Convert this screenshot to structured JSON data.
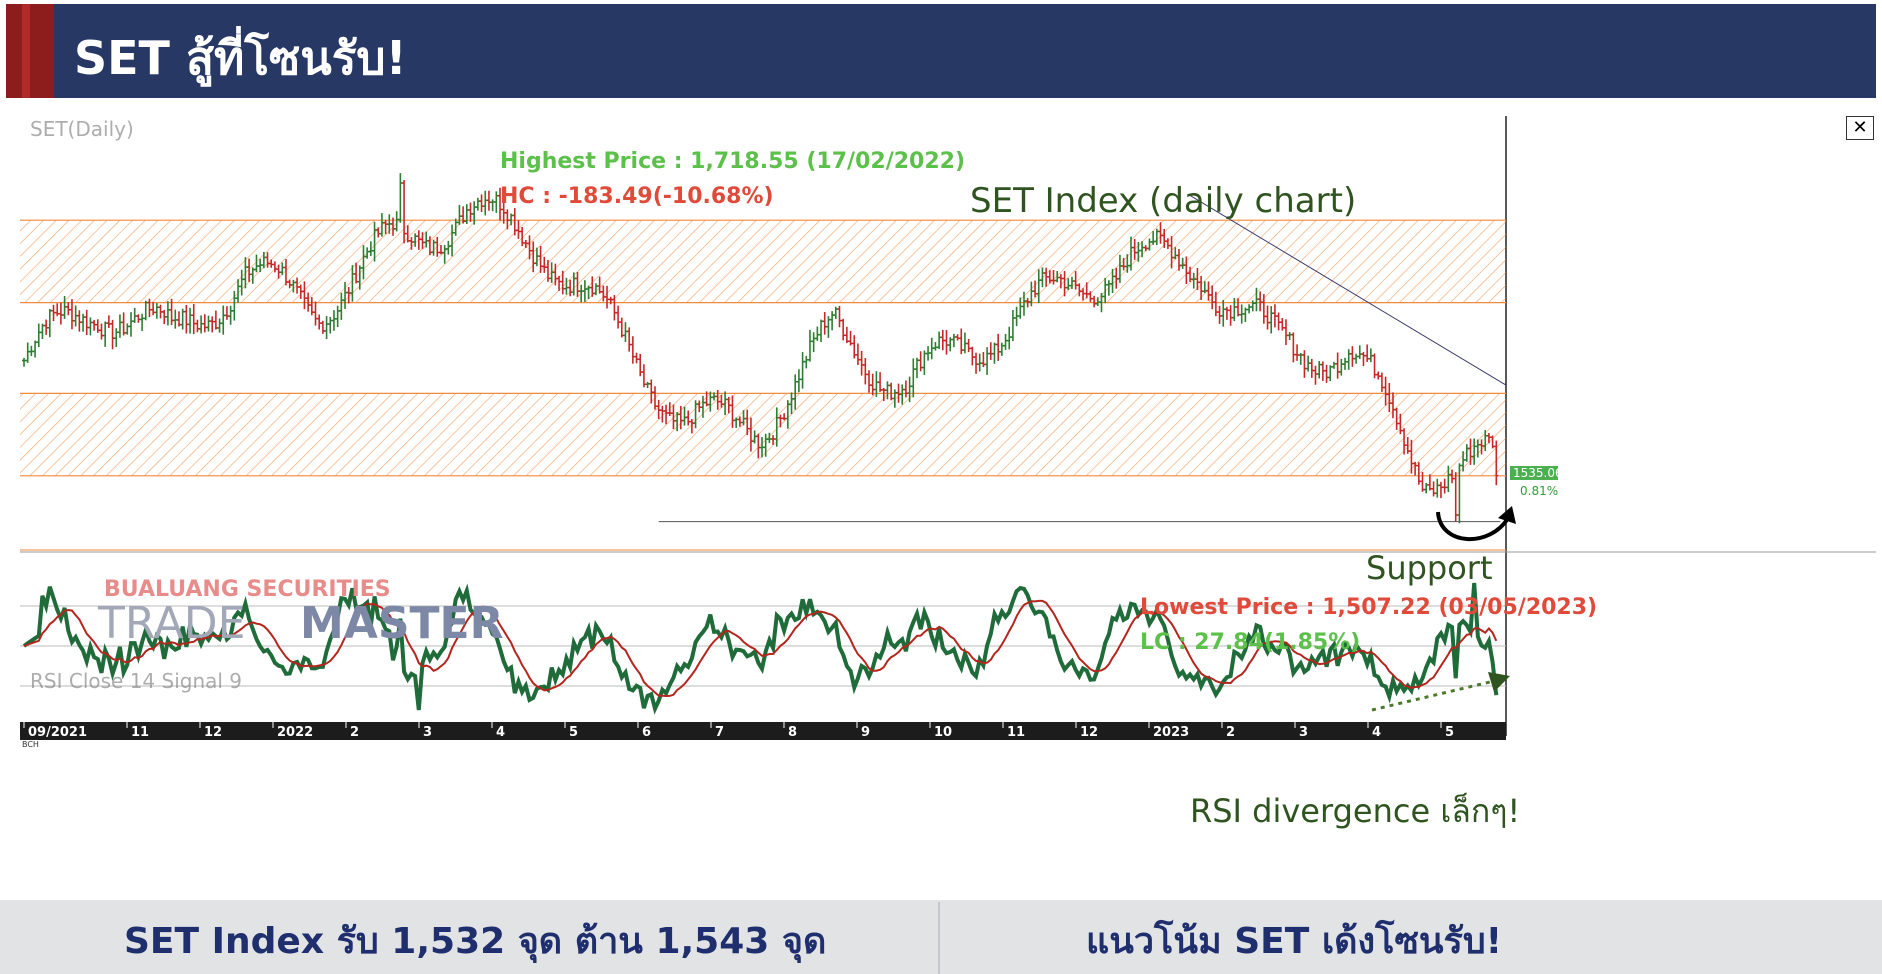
{
  "header": {
    "title": "SET สู้ที่โซนรับ!"
  },
  "chart": {
    "panel_label": "SET(Daily)",
    "rsi_label": "RSI Close 14 Signal 9",
    "main_title": "SET Index (daily chart)",
    "annotations": {
      "highest": "Highest Price : 1,718.55 (17/02/2022)",
      "hc": "HC : -183.49(-10.68%)",
      "support": "Support",
      "lowest": "Lowest Price : 1,507.22 (03/05/2023)",
      "lc": "LC : 27.84(1.85%)",
      "rsi_div": "RSI divergence เล็กๆ!"
    },
    "last_price": "1535.06",
    "last_change": "0.81%",
    "watermark": {
      "line1": "BUALUANG SECURITIES",
      "line2a": "TRADE",
      "line2b": "MASTER"
    },
    "x_ticks": [
      "09/2021",
      "11",
      "12",
      "2022",
      "2",
      "3",
      "4",
      "5",
      "6",
      "7",
      "8",
      "9",
      "10",
      "11",
      "12",
      "2023",
      "2",
      "3",
      "4",
      "5"
    ],
    "corner_label": "BCH",
    "colors": {
      "up": "#2e7d32",
      "down": "#c62828",
      "zone": "#f08a3c",
      "rsi": "#1f6b3a",
      "signal": "#b3261e",
      "header": "#273864"
    }
  },
  "chart_data": {
    "type": "candlestick",
    "title": "SET Index (daily chart)",
    "x_range": [
      "09/2021",
      "05/2023"
    ],
    "resistance_zone": [
      1640,
      1690
    ],
    "support_zone": [
      1535,
      1585
    ],
    "support_line": 1507.22,
    "highest": {
      "value": 1718.55,
      "date": "17/02/2022"
    },
    "lowest": {
      "value": 1507.22,
      "date": "03/05/2023"
    },
    "last": 1535.06,
    "approx_monthly_close": [
      {
        "month": "2021-09",
        "close": 1605
      },
      {
        "month": "2021-10",
        "close": 1630
      },
      {
        "month": "2021-11",
        "close": 1610
      },
      {
        "month": "2021-12",
        "close": 1657
      },
      {
        "month": "2022-01",
        "close": 1648
      },
      {
        "month": "2022-02",
        "close": 1685
      },
      {
        "month": "2022-03",
        "close": 1695
      },
      {
        "month": "2022-04",
        "close": 1667
      },
      {
        "month": "2022-05",
        "close": 1615
      },
      {
        "month": "2022-06",
        "close": 1568
      },
      {
        "month": "2022-07",
        "close": 1576
      },
      {
        "month": "2022-08",
        "close": 1630
      },
      {
        "month": "2022-09",
        "close": 1589
      },
      {
        "month": "2022-10",
        "close": 1609
      },
      {
        "month": "2022-11",
        "close": 1635
      },
      {
        "month": "2022-12",
        "close": 1669
      },
      {
        "month": "2023-01",
        "close": 1671
      },
      {
        "month": "2023-02",
        "close": 1622
      },
      {
        "month": "2023-03",
        "close": 1609
      },
      {
        "month": "2023-04",
        "close": 1529
      },
      {
        "month": "2023-05",
        "close": 1535
      }
    ]
  },
  "footer": {
    "left": "SET Index รับ 1,532 จุด ต้าน 1,543 จุด",
    "right": "แนวโน้ม SET เด้งโซนรับ!"
  }
}
